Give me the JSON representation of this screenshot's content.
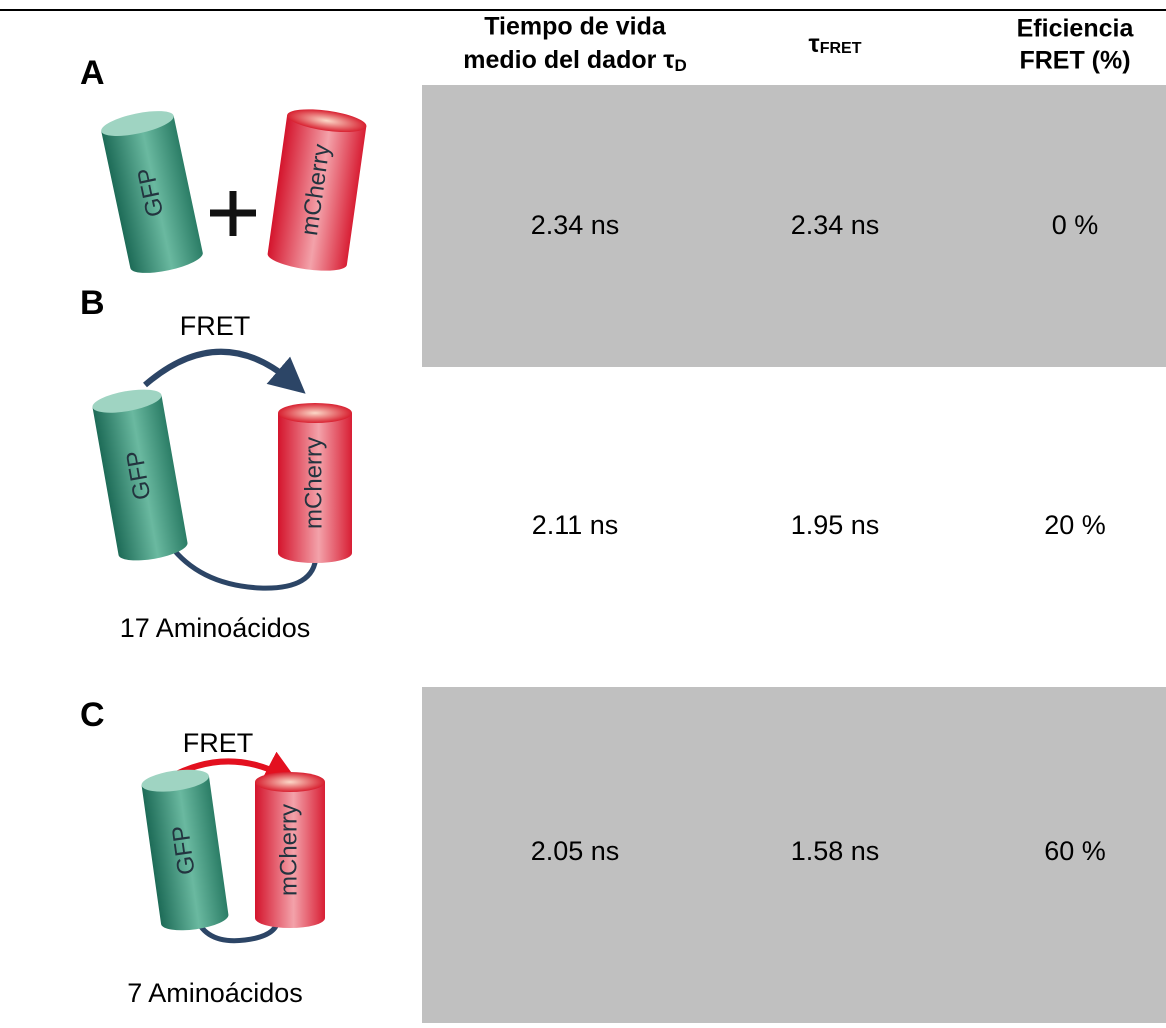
{
  "header": {
    "donor_lifetime": {
      "line1": "Tiempo de vida",
      "line2": "medio del dador τ",
      "sub": "D"
    },
    "tau_fret": {
      "main": "τ",
      "sub": "FRET"
    },
    "efficiency": {
      "line1": "Eficiencia",
      "line2": "FRET (%)"
    }
  },
  "rows": [
    {
      "label": "A",
      "donor": "GFP",
      "acceptor": "mCherry",
      "cells": [
        "2.34 ns",
        "2.34 ns",
        "0 %"
      ]
    },
    {
      "label": "B",
      "arrow": "FRET",
      "donor": "GFP",
      "acceptor": "mCherry",
      "linker": "17 Aminoácidos",
      "cells": [
        "2.11 ns",
        "1.95 ns",
        "20 %"
      ]
    },
    {
      "label": "C",
      "arrow": "FRET",
      "donor": "GFP",
      "acceptor": "mCherry",
      "linker": "7 Aminoácidos",
      "cells": [
        "2.05 ns",
        "1.58 ns",
        "60 %"
      ]
    }
  ]
}
